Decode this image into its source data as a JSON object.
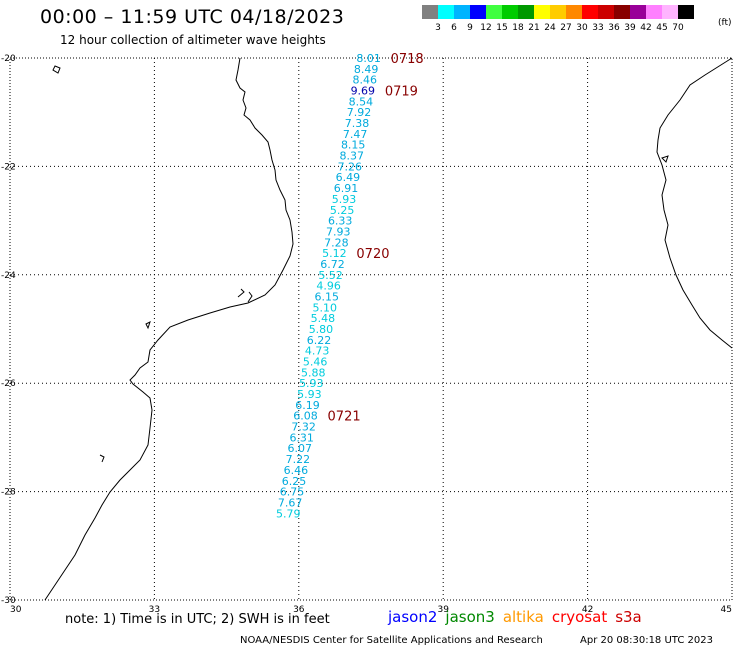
{
  "header": {
    "title": "00:00 – 11:59 UTC 04/18/2023",
    "subtitle": "12 hour collection of altimeter wave heights"
  },
  "color_scale": {
    "unit": "(ft)",
    "items": [
      {
        "label": "3",
        "color": "#808080"
      },
      {
        "label": "6",
        "color": "#00ffff"
      },
      {
        "label": "9",
        "color": "#00b4ff"
      },
      {
        "label": "12",
        "color": "#0000ff"
      },
      {
        "label": "15",
        "color": "#40ff40"
      },
      {
        "label": "18",
        "color": "#00cc00"
      },
      {
        "label": "21",
        "color": "#009900"
      },
      {
        "label": "24",
        "color": "#ffff00"
      },
      {
        "label": "27",
        "color": "#ffcc00"
      },
      {
        "label": "30",
        "color": "#ff8800"
      },
      {
        "label": "33",
        "color": "#ff0000"
      },
      {
        "label": "36",
        "color": "#cc0000"
      },
      {
        "label": "39",
        "color": "#880000"
      },
      {
        "label": "42",
        "color": "#990099"
      },
      {
        "label": "45",
        "color": "#ff80ff"
      },
      {
        "label": "70",
        "color": "#ffb4ff"
      },
      {
        "label": "",
        "color": "#000000"
      }
    ]
  },
  "axes": {
    "lon_ticks": [
      "30",
      "33",
      "36",
      "39",
      "42",
      "45"
    ],
    "lat_ticks": [
      "-20",
      "-22",
      "-24",
      "-26",
      "-28",
      "-30"
    ]
  },
  "track": {
    "readings": [
      {
        "v": "8.01",
        "lat": -20.0,
        "lon": 37.45,
        "color": "#00aadd"
      },
      {
        "v": "8.49",
        "lat": -20.2,
        "lon": 37.4,
        "color": "#00aadd"
      },
      {
        "v": "8.46",
        "lat": -20.4,
        "lon": 37.37,
        "color": "#00aadd"
      },
      {
        "v": "9.69",
        "lat": -20.6,
        "lon": 37.33,
        "color": "#0000aa"
      },
      {
        "v": "8.54",
        "lat": -20.8,
        "lon": 37.29,
        "color": "#00aadd"
      },
      {
        "v": "7.92",
        "lat": -21.0,
        "lon": 37.25,
        "color": "#00aadd"
      },
      {
        "v": "7.38",
        "lat": -21.2,
        "lon": 37.21,
        "color": "#00aadd"
      },
      {
        "v": "7.47",
        "lat": -21.4,
        "lon": 37.17,
        "color": "#00aadd"
      },
      {
        "v": "8.15",
        "lat": -21.6,
        "lon": 37.13,
        "color": "#00aadd"
      },
      {
        "v": "8.37",
        "lat": -21.8,
        "lon": 37.1,
        "color": "#00aadd"
      },
      {
        "v": "7.26",
        "lat": -22.0,
        "lon": 37.06,
        "color": "#00aadd"
      },
      {
        "v": "6.49",
        "lat": -22.2,
        "lon": 37.02,
        "color": "#00aadd"
      },
      {
        "v": "6.91",
        "lat": -22.4,
        "lon": 36.98,
        "color": "#00aadd"
      },
      {
        "v": "5.93",
        "lat": -22.6,
        "lon": 36.94,
        "color": "#00ccdd"
      },
      {
        "v": "5.25",
        "lat": -22.8,
        "lon": 36.9,
        "color": "#00ccdd"
      },
      {
        "v": "6.33",
        "lat": -23.0,
        "lon": 36.86,
        "color": "#00aadd"
      },
      {
        "v": "7.93",
        "lat": -23.2,
        "lon": 36.82,
        "color": "#00aadd"
      },
      {
        "v": "7.28",
        "lat": -23.4,
        "lon": 36.78,
        "color": "#00aadd"
      },
      {
        "v": "5.12",
        "lat": -23.6,
        "lon": 36.74,
        "color": "#00ccdd"
      },
      {
        "v": "6.72",
        "lat": -23.8,
        "lon": 36.7,
        "color": "#00aadd"
      },
      {
        "v": "5.52",
        "lat": -24.0,
        "lon": 36.66,
        "color": "#00ccdd"
      },
      {
        "v": "4.96",
        "lat": -24.2,
        "lon": 36.62,
        "color": "#00ccdd"
      },
      {
        "v": "6.15",
        "lat": -24.4,
        "lon": 36.58,
        "color": "#00aadd"
      },
      {
        "v": "5.10",
        "lat": -24.6,
        "lon": 36.54,
        "color": "#00ccdd"
      },
      {
        "v": "5.48",
        "lat": -24.8,
        "lon": 36.5,
        "color": "#00ccdd"
      },
      {
        "v": "5.80",
        "lat": -25.0,
        "lon": 36.46,
        "color": "#00ccdd"
      },
      {
        "v": "6.22",
        "lat": -25.2,
        "lon": 36.42,
        "color": "#00aadd"
      },
      {
        "v": "4.73",
        "lat": -25.4,
        "lon": 36.38,
        "color": "#00ccdd"
      },
      {
        "v": "5.46",
        "lat": -25.6,
        "lon": 36.34,
        "color": "#00ccdd"
      },
      {
        "v": "5.88",
        "lat": -25.8,
        "lon": 36.3,
        "color": "#00ccdd"
      },
      {
        "v": "5.93",
        "lat": -26.0,
        "lon": 36.26,
        "color": "#00ccdd"
      },
      {
        "v": "5.93",
        "lat": -26.2,
        "lon": 36.22,
        "color": "#00ccdd"
      },
      {
        "v": "6.19",
        "lat": -26.4,
        "lon": 36.18,
        "color": "#00aadd"
      },
      {
        "v": "6.08",
        "lat": -26.6,
        "lon": 36.14,
        "color": "#00aadd"
      },
      {
        "v": "7.32",
        "lat": -26.8,
        "lon": 36.1,
        "color": "#00aadd"
      },
      {
        "v": "6.31",
        "lat": -27.0,
        "lon": 36.06,
        "color": "#00aadd"
      },
      {
        "v": "6.07",
        "lat": -27.2,
        "lon": 36.02,
        "color": "#00aadd"
      },
      {
        "v": "7.22",
        "lat": -27.4,
        "lon": 35.98,
        "color": "#00aadd"
      },
      {
        "v": "6.46",
        "lat": -27.6,
        "lon": 35.94,
        "color": "#00aadd"
      },
      {
        "v": "6.25",
        "lat": -27.8,
        "lon": 35.9,
        "color": "#00aadd"
      },
      {
        "v": "6.75",
        "lat": -28.0,
        "lon": 35.86,
        "color": "#00aadd"
      },
      {
        "v": "7.67",
        "lat": -28.2,
        "lon": 35.82,
        "color": "#00aadd"
      },
      {
        "v": "5.79",
        "lat": -28.4,
        "lon": 35.78,
        "color": "#00ccdd"
      }
    ],
    "day_labels": [
      {
        "text": "0718",
        "lat": -20.0,
        "lon": 37.45
      },
      {
        "text": "0719",
        "lat": -20.6,
        "lon": 37.33
      },
      {
        "text": "0720",
        "lat": -23.6,
        "lon": 36.74
      },
      {
        "text": "0721",
        "lat": -26.6,
        "lon": 36.14
      }
    ]
  },
  "footer": {
    "note": "note: 1) Time is in UTC; 2) SWH is in feet",
    "satellites": [
      {
        "name": "jason2",
        "color": "#0000ff"
      },
      {
        "name": "jason3",
        "color": "#008800"
      },
      {
        "name": "altika",
        "color": "#ff9900"
      },
      {
        "name": "cryosat",
        "color": "#ff0000"
      },
      {
        "name": "s3a",
        "color": "#cc0000"
      }
    ],
    "credit": "NOAA/NESDIS Center for Satellite Applications and Research",
    "timestamp": "Apr 20 08:30:18 UTC 2023"
  }
}
